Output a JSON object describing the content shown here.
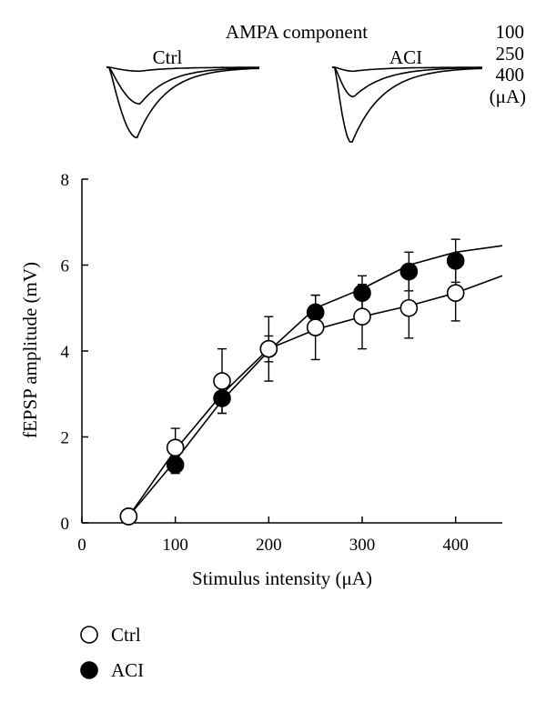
{
  "chart_data": [
    {
      "type": "line",
      "title": "",
      "xlabel": "Stimulus intensity (μA)",
      "ylabel": "fEPSP amplitude (mV)",
      "xlim": [
        0,
        450
      ],
      "ylim": [
        0,
        8
      ],
      "xticks": [
        "0",
        "100",
        "200",
        "300",
        "400"
      ],
      "yticks": [
        "0",
        "2",
        "4",
        "6",
        "8"
      ],
      "legend_position": "bottom-left",
      "series": [
        {
          "name": "Ctrl",
          "marker": "open-circle",
          "x": [
            50,
            100,
            150,
            200,
            250,
            300,
            350,
            400
          ],
          "y": [
            0.15,
            1.75,
            3.3,
            4.05,
            4.55,
            4.8,
            5.0,
            5.35
          ],
          "err": [
            0.05,
            0.45,
            0.75,
            0.75,
            0.75,
            0.75,
            0.7,
            0.65
          ],
          "fit_x": [
            50,
            100,
            150,
            200,
            250,
            300,
            350,
            400,
            450
          ],
          "fit_y": [
            0.15,
            1.7,
            3.0,
            4.05,
            4.5,
            4.8,
            5.05,
            5.35,
            5.75
          ]
        },
        {
          "name": "ACI",
          "marker": "filled-circle",
          "x": [
            50,
            100,
            150,
            200,
            250,
            300,
            350,
            400
          ],
          "y": [
            0.15,
            1.35,
            2.9,
            4.05,
            4.9,
            5.35,
            5.85,
            6.1
          ],
          "err": [
            0.05,
            0.2,
            0.35,
            0.3,
            0.4,
            0.4,
            0.45,
            0.5
          ],
          "fit_x": [
            50,
            100,
            150,
            200,
            250,
            300,
            350,
            400,
            450
          ],
          "fit_y": [
            0.15,
            1.45,
            2.85,
            4.0,
            5.0,
            5.45,
            6.0,
            6.3,
            6.45
          ]
        }
      ]
    },
    {
      "type": "line",
      "title": "AMPA component",
      "panels": [
        "Ctrl",
        "ACI"
      ],
      "stimulus_levels": [
        "100",
        "250",
        "400"
      ],
      "unit_label": "(μA)",
      "traces": {
        "Ctrl": [
          {
            "stimulus": "100",
            "relative_peak": 0.05
          },
          {
            "stimulus": "250",
            "relative_peak": 0.47
          },
          {
            "stimulus": "400",
            "relative_peak": 0.9
          }
        ],
        "ACI": [
          {
            "stimulus": "100",
            "relative_peak": 0.05
          },
          {
            "stimulus": "250",
            "relative_peak": 0.38
          },
          {
            "stimulus": "400",
            "relative_peak": 0.97
          }
        ]
      }
    }
  ]
}
